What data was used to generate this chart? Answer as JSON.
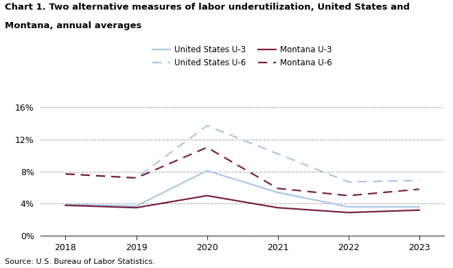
{
  "title_line1": "Chart 1. Two alternative measures of labor underutilization, United States and",
  "title_line2": "Montana, annual averages",
  "years": [
    2018,
    2019,
    2020,
    2021,
    2022,
    2023
  ],
  "us_u3": [
    3.9,
    3.7,
    8.1,
    5.4,
    3.6,
    3.6
  ],
  "us_u6": [
    7.7,
    7.2,
    13.7,
    10.2,
    6.7,
    6.9
  ],
  "mt_u3": [
    3.8,
    3.5,
    5.0,
    3.5,
    2.9,
    3.2
  ],
  "mt_u6": [
    7.7,
    7.2,
    11.0,
    5.9,
    5.0,
    5.8
  ],
  "us_color": "#a8c8e8",
  "mt_color": "#7b2040",
  "ylim": [
    0,
    16
  ],
  "yticks": [
    0,
    4,
    8,
    12,
    16
  ],
  "ytick_labels": [
    "0%",
    "4%",
    "8%",
    "12%",
    "16%"
  ],
  "source": "Source: U.S. Bureau of Labor Statistics.",
  "leg_us_u3": "United States U-3",
  "leg_us_u6": "United States U-6",
  "leg_mt_u3": "Montana U-3",
  "leg_mt_u6": "Montana U-6"
}
